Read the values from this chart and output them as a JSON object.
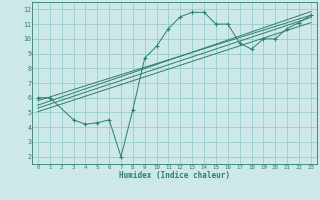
{
  "xlabel": "Humidex (Indice chaleur)",
  "bg_color": "#cce8e8",
  "grid_color": "#99cccc",
  "line_color": "#2e7d6e",
  "xlim": [
    -0.5,
    23.5
  ],
  "ylim": [
    1.5,
    12.5
  ],
  "xticks": [
    0,
    1,
    2,
    3,
    4,
    5,
    6,
    7,
    8,
    9,
    10,
    11,
    12,
    13,
    14,
    15,
    16,
    17,
    18,
    19,
    20,
    21,
    22,
    23
  ],
  "yticks": [
    2,
    3,
    4,
    5,
    6,
    7,
    8,
    9,
    10,
    11,
    12
  ],
  "scatter_x": [
    0,
    1,
    3,
    4,
    5,
    6,
    7,
    8,
    9,
    10,
    11,
    12,
    13,
    14,
    15,
    16,
    17,
    18,
    19,
    20,
    21,
    22,
    23
  ],
  "scatter_y": [
    6.0,
    6.0,
    4.5,
    4.2,
    4.3,
    4.5,
    2.0,
    5.2,
    8.7,
    9.5,
    10.7,
    11.5,
    11.8,
    11.8,
    11.0,
    11.0,
    9.7,
    9.3,
    10.0,
    10.0,
    10.7,
    11.1,
    11.6
  ],
  "line1_x": [
    0,
    23
  ],
  "line1_y": [
    5.8,
    11.6
  ],
  "line2_x": [
    0,
    23
  ],
  "line2_y": [
    5.5,
    11.85
  ],
  "line3_x": [
    0,
    23
  ],
  "line3_y": [
    5.3,
    11.45
  ],
  "line4_x": [
    0,
    23
  ],
  "line4_y": [
    5.05,
    11.1
  ]
}
